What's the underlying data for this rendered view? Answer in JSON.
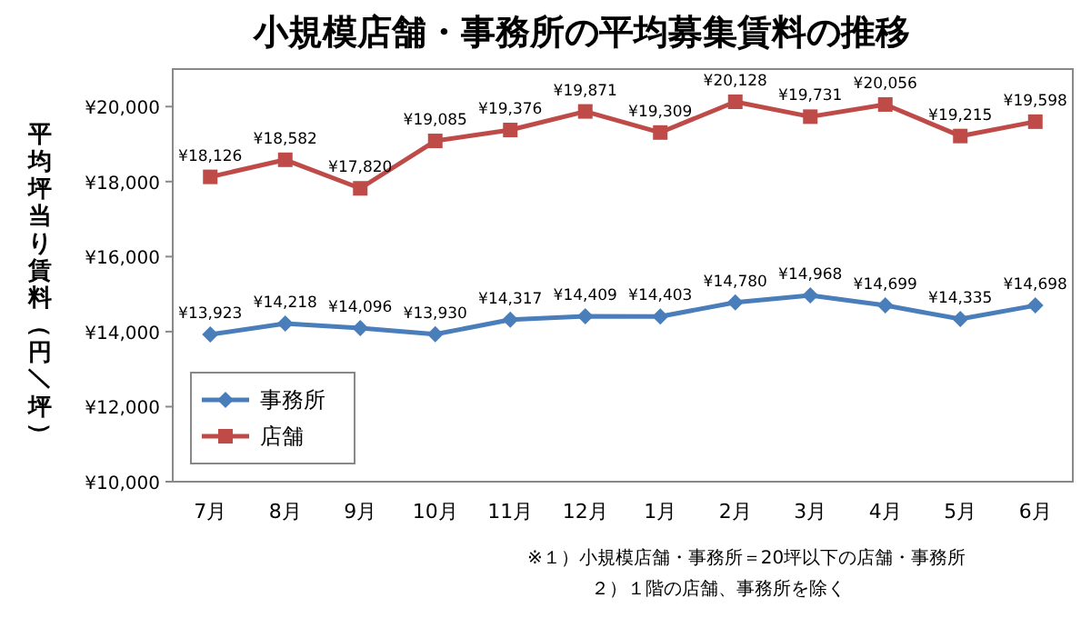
{
  "chart_data": {
    "type": "line",
    "title": "小規模店舗・事務所の平均募集賃料の推移",
    "ylabel": "平均坪当り賃料（円／坪）",
    "categories": [
      "7月",
      "8月",
      "9月",
      "10月",
      "11月",
      "12月",
      "1月",
      "2月",
      "3月",
      "4月",
      "5月",
      "6月"
    ],
    "series": [
      {
        "name": "事務所",
        "color": "#4a7ebb",
        "marker": "diamond",
        "values": [
          13923,
          14218,
          14096,
          13930,
          14317,
          14409,
          14403,
          14780,
          14968,
          14699,
          14335,
          14698
        ],
        "value_labels": [
          "¥13,923",
          "¥14,218",
          "¥14,096",
          "¥13,930",
          "¥14,317",
          "¥14,409",
          "¥14,403",
          "¥14,780",
          "¥14,968",
          "¥14,699",
          "¥14,335",
          "¥14,698"
        ]
      },
      {
        "name": "店舗",
        "color": "#be4b48",
        "marker": "square",
        "values": [
          18126,
          18582,
          17820,
          19085,
          19376,
          19871,
          19309,
          20128,
          19731,
          20056,
          19215,
          19598
        ],
        "value_labels": [
          "¥18,126",
          "¥18,582",
          "¥17,820",
          "¥19,085",
          "¥19,376",
          "¥19,871",
          "¥19,309",
          "¥20,128",
          "¥19,731",
          "¥20,056",
          "¥19,215",
          "¥19,598"
        ]
      }
    ],
    "ylim": [
      10000,
      21000
    ],
    "yticks": [
      {
        "value": 10000,
        "label": "¥10,000"
      },
      {
        "value": 12000,
        "label": "¥12,000"
      },
      {
        "value": 14000,
        "label": "¥14,000"
      },
      {
        "value": 16000,
        "label": "¥16,000"
      },
      {
        "value": 18000,
        "label": "¥18,000"
      },
      {
        "value": 20000,
        "label": "¥20,000"
      }
    ],
    "legend": "bottom left",
    "annotations": [
      "※１）小規模店舗・事務所＝20坪以下の店舗・事務所",
      "２）１階の店舗、事務所を除く"
    ]
  }
}
